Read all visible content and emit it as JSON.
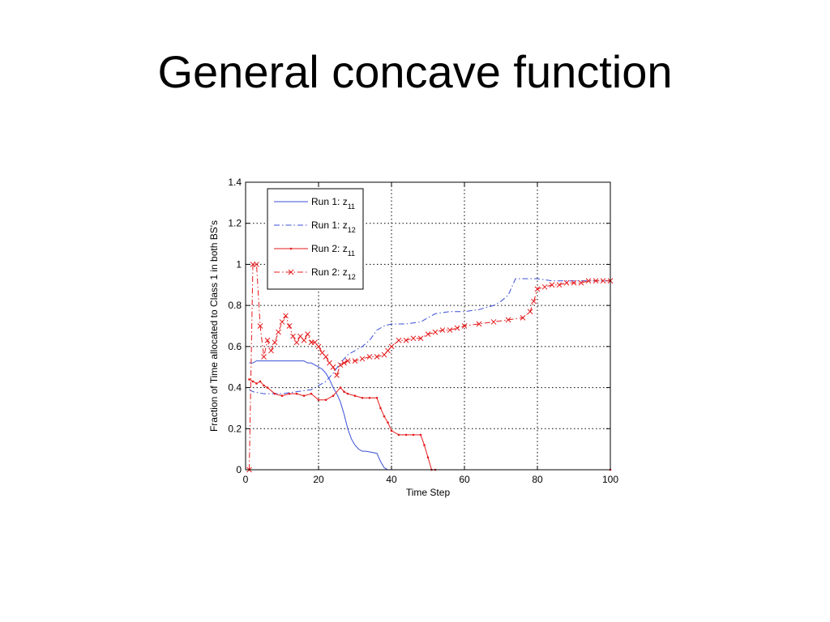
{
  "slide": {
    "title": "General concave function"
  },
  "chart_data": {
    "type": "line",
    "title": "",
    "xlabel": "Time Step",
    "ylabel": "Fraction of Time allocated to Class 1 in both BS's",
    "xlim": [
      0,
      100
    ],
    "ylim": [
      0,
      1.4
    ],
    "xticks": [
      0,
      20,
      40,
      60,
      80,
      100
    ],
    "yticks": [
      0,
      0.2,
      0.4,
      0.6,
      0.8,
      1,
      1.2,
      1.4
    ],
    "xtick_labels": [
      "0",
      "20",
      "40",
      "60",
      "80",
      "100"
    ],
    "ytick_labels": [
      "0",
      "0.2",
      "0.4",
      "0.6",
      "0.8",
      "1",
      "1.2",
      "1.4"
    ],
    "grid": true,
    "legend": "top-left",
    "series": [
      {
        "name_main": "Run 1: z",
        "name_sub": "11",
        "color": "#3a4fd8",
        "dash": "solid",
        "marker": "none",
        "x": [
          1,
          2,
          3,
          4,
          16,
          17,
          18,
          20,
          21,
          22,
          23,
          24,
          25,
          26,
          27,
          28,
          29,
          30,
          31,
          32,
          33,
          36,
          37,
          38,
          39,
          40,
          100
        ],
        "y": [
          0.52,
          0.52,
          0.53,
          0.53,
          0.53,
          0.52,
          0.52,
          0.5,
          0.49,
          0.47,
          0.44,
          0.4,
          0.37,
          0.33,
          0.27,
          0.2,
          0.15,
          0.12,
          0.1,
          0.09,
          0.09,
          0.08,
          0.04,
          0.01,
          0.0,
          0.0,
          0.0
        ]
      },
      {
        "name_main": "Run 1: z",
        "name_sub": "12",
        "color": "#3a4fd8",
        "dash": "dashdot",
        "marker": "none",
        "x": [
          1,
          2,
          5,
          10,
          18,
          20,
          22,
          24,
          26,
          28,
          30,
          32,
          34,
          36,
          38,
          40,
          44,
          48,
          52,
          56,
          60,
          64,
          68,
          70,
          72,
          74,
          80,
          84,
          88,
          92,
          100
        ],
        "y": [
          0.39,
          0.38,
          0.37,
          0.37,
          0.39,
          0.41,
          0.43,
          0.47,
          0.52,
          0.56,
          0.58,
          0.6,
          0.63,
          0.68,
          0.7,
          0.71,
          0.71,
          0.72,
          0.76,
          0.77,
          0.77,
          0.78,
          0.8,
          0.82,
          0.85,
          0.93,
          0.93,
          0.92,
          0.92,
          0.92,
          0.92
        ]
      },
      {
        "name_main": "Run 2: z",
        "name_sub": "11",
        "color": "#e41a1c",
        "dash": "solid",
        "marker": "dot",
        "x": [
          1,
          2,
          3,
          4,
          5,
          6,
          8,
          10,
          12,
          14,
          16,
          18,
          20,
          22,
          24,
          26,
          27,
          28,
          30,
          32,
          34,
          36,
          37,
          38,
          39,
          40,
          42,
          44,
          46,
          48,
          49,
          50,
          51,
          52,
          100
        ],
        "y": [
          0.44,
          0.43,
          0.42,
          0.43,
          0.41,
          0.4,
          0.37,
          0.36,
          0.37,
          0.37,
          0.36,
          0.37,
          0.34,
          0.34,
          0.36,
          0.4,
          0.38,
          0.37,
          0.36,
          0.35,
          0.35,
          0.35,
          0.3,
          0.26,
          0.23,
          0.19,
          0.17,
          0.17,
          0.17,
          0.17,
          0.12,
          0.06,
          0.0,
          0.0,
          0.0
        ]
      },
      {
        "name_main": "Run 2: z",
        "name_sub": "12",
        "color": "#e41a1c",
        "dash": "dashdot",
        "marker": "x",
        "x": [
          1,
          2,
          3,
          4,
          5,
          6,
          7,
          8,
          9,
          10,
          11,
          12,
          13,
          14,
          15,
          16,
          17,
          18,
          19,
          20,
          21,
          22,
          23,
          24,
          25,
          26,
          27,
          28,
          30,
          32,
          34,
          36,
          38,
          39,
          40,
          42,
          44,
          46,
          48,
          50,
          52,
          54,
          56,
          58,
          60,
          64,
          68,
          72,
          76,
          78,
          79,
          80,
          82,
          84,
          86,
          88,
          90,
          92,
          94,
          96,
          98,
          100
        ],
        "y": [
          0.0,
          1.0,
          1.0,
          0.7,
          0.55,
          0.63,
          0.58,
          0.62,
          0.67,
          0.72,
          0.75,
          0.7,
          0.65,
          0.62,
          0.65,
          0.63,
          0.66,
          0.62,
          0.62,
          0.6,
          0.57,
          0.55,
          0.52,
          0.5,
          0.46,
          0.51,
          0.52,
          0.53,
          0.53,
          0.54,
          0.55,
          0.55,
          0.56,
          0.58,
          0.6,
          0.63,
          0.63,
          0.64,
          0.64,
          0.66,
          0.67,
          0.68,
          0.68,
          0.69,
          0.7,
          0.71,
          0.72,
          0.73,
          0.74,
          0.77,
          0.82,
          0.88,
          0.89,
          0.9,
          0.9,
          0.91,
          0.91,
          0.91,
          0.92,
          0.92,
          0.92,
          0.92
        ]
      }
    ]
  }
}
